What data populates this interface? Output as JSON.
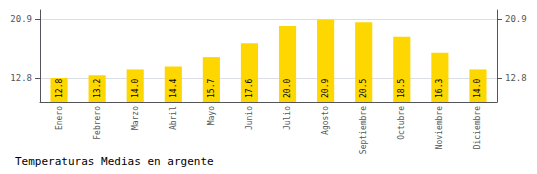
{
  "chart_data": {
    "type": "bar",
    "title": "Temperaturas Medias en argente",
    "categories": [
      "Enero",
      "Febrero",
      "Marzo",
      "Abril",
      "Mayo",
      "Junio",
      "Julio",
      "Agosto",
      "Septiembre",
      "Octubre",
      "Noviembre",
      "Diciembre"
    ],
    "values": [
      12.8,
      13.2,
      14.0,
      14.4,
      15.7,
      17.6,
      20.0,
      20.9,
      20.5,
      18.5,
      16.3,
      14.0
    ],
    "value_labels": [
      "12.8",
      "13.2",
      "14.0",
      "14.4",
      "15.7",
      "17.6",
      "20.0",
      "20.9",
      "20.5",
      "18.5",
      "16.3",
      "14.0"
    ],
    "color": "#FFD700",
    "ylim": [
      9.5,
      22.2
    ],
    "yticks": [
      12.8,
      20.9
    ],
    "y2lim": [
      9.5,
      22.2
    ],
    "y2ticks": [
      12.8,
      20.9
    ],
    "grid": true,
    "data_labels": true
  }
}
